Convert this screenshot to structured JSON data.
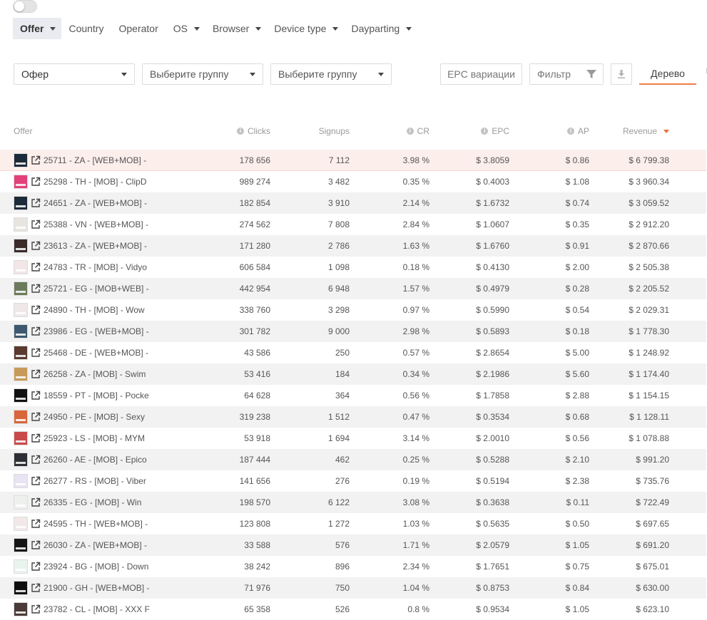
{
  "toolbar": {
    "tabs": [
      {
        "label": "Offer",
        "active": true,
        "caret": true
      },
      {
        "label": "Country",
        "caret": false
      },
      {
        "label": "Operator",
        "caret": false
      },
      {
        "label": "OS",
        "caret": true
      },
      {
        "label": "Browser",
        "caret": true
      },
      {
        "label": "Device type",
        "caret": true
      },
      {
        "label": "Dayparting",
        "caret": true
      }
    ]
  },
  "filters": {
    "group1": "Офер",
    "group2": "Выберите группу",
    "group3": "Выберите группу",
    "epc_variations": "EPC вариации",
    "filter": "Фильтр",
    "tree": "Дерево"
  },
  "table": {
    "headers": {
      "offer": "Offer",
      "clicks": "Clicks",
      "signups": "Signups",
      "cr": "CR",
      "epc": "EPC",
      "ap": "AP",
      "revenue": "Revenue"
    },
    "sort": {
      "column": "revenue",
      "direction": "desc",
      "color": "#f06a3a"
    },
    "highlight_color": "#fcefeb",
    "rows": [
      {
        "offer": "25711 - ZA - [WEB+MOB] -",
        "clicks": "178 656",
        "signups": "7 112",
        "cr": "3.98 %",
        "epc": "$ 3.8059",
        "ap": "$ 0.86",
        "revenue": "$ 6 799.38",
        "thumb": "#1d2a3a"
      },
      {
        "offer": "25298 - TH - [MOB] - ClipD",
        "clicks": "989 274",
        "signups": "3 482",
        "cr": "0.35 %",
        "epc": "$ 0.4003",
        "ap": "$ 1.08",
        "revenue": "$ 3 960.34",
        "thumb": "#e2417a"
      },
      {
        "offer": "24651 - ZA - [WEB+MOB] -",
        "clicks": "182 854",
        "signups": "3 910",
        "cr": "2.14 %",
        "epc": "$ 1.6732",
        "ap": "$ 0.74",
        "revenue": "$ 3 059.52",
        "thumb": "#1d2a3a"
      },
      {
        "offer": "25388 - VN - [WEB+MOB] -",
        "clicks": "274 562",
        "signups": "7 808",
        "cr": "2.84 %",
        "epc": "$ 1.0607",
        "ap": "$ 0.35",
        "revenue": "$ 2 912.20",
        "thumb": "#e8e4e0"
      },
      {
        "offer": "23613 - ZA - [WEB+MOB] -",
        "clicks": "171 280",
        "signups": "2 786",
        "cr": "1.63 %",
        "epc": "$ 1.6760",
        "ap": "$ 0.91",
        "revenue": "$ 2 870.66",
        "thumb": "#3a2a28"
      },
      {
        "offer": "24783 - TR - [MOB] - Vidyo",
        "clicks": "606 584",
        "signups": "1 098",
        "cr": "0.18 %",
        "epc": "$ 0.4130",
        "ap": "$ 2.00",
        "revenue": "$ 2 505.38",
        "thumb": "#f3e6e6"
      },
      {
        "offer": "25721 - EG - [MOB+WEB] -",
        "clicks": "442 954",
        "signups": "6 948",
        "cr": "1.57 %",
        "epc": "$ 0.4979",
        "ap": "$ 0.28",
        "revenue": "$ 2 205.52",
        "thumb": "#6b7a5a"
      },
      {
        "offer": "24890 - TH - [MOB] - Wow",
        "clicks": "338 760",
        "signups": "3 298",
        "cr": "0.97 %",
        "epc": "$ 0.5990",
        "ap": "$ 0.54",
        "revenue": "$ 2 029.31",
        "thumb": "#f0e8e8"
      },
      {
        "offer": "23986 - EG - [WEB+MOB] -",
        "clicks": "301 782",
        "signups": "9 000",
        "cr": "2.98 %",
        "epc": "$ 0.5893",
        "ap": "$ 0.18",
        "revenue": "$ 1 778.30",
        "thumb": "#3d5870"
      },
      {
        "offer": "25468 - DE - [WEB+MOB] -",
        "clicks": "43 586",
        "signups": "250",
        "cr": "0.57 %",
        "epc": "$ 2.8654",
        "ap": "$ 5.00",
        "revenue": "$ 1 248.92",
        "thumb": "#5a3b2e"
      },
      {
        "offer": "26258 - ZA - [MOB] - Swim",
        "clicks": "53 416",
        "signups": "184",
        "cr": "0.34 %",
        "epc": "$ 2.1986",
        "ap": "$ 5.60",
        "revenue": "$ 1 174.40",
        "thumb": "#c89a5a"
      },
      {
        "offer": "18559 - PT - [MOB] - Pocke",
        "clicks": "64 628",
        "signups": "364",
        "cr": "0.56 %",
        "epc": "$ 1.7858",
        "ap": "$ 2.88",
        "revenue": "$ 1 154.15",
        "thumb": "#111111"
      },
      {
        "offer": "24950 - PE - [MOB] - Sexy",
        "clicks": "319 238",
        "signups": "1 512",
        "cr": "0.47 %",
        "epc": "$ 0.3534",
        "ap": "$ 0.68",
        "revenue": "$ 1 128.11",
        "thumb": "#d9653a"
      },
      {
        "offer": "25923 - LS - [MOB] - MYM",
        "clicks": "53 918",
        "signups": "1 694",
        "cr": "3.14 %",
        "epc": "$ 2.0010",
        "ap": "$ 0.56",
        "revenue": "$ 1 078.88",
        "thumb": "#c84a4a"
      },
      {
        "offer": "26260 - AE - [MOB] - Epico",
        "clicks": "187 444",
        "signups": "462",
        "cr": "0.25 %",
        "epc": "$ 0.5288",
        "ap": "$ 2.10",
        "revenue": "$ 991.20",
        "thumb": "#2e2e36"
      },
      {
        "offer": "26277 - RS - [MOB] - Viber",
        "clicks": "141 656",
        "signups": "276",
        "cr": "0.19 %",
        "epc": "$ 0.5194",
        "ap": "$ 2.38",
        "revenue": "$ 735.76",
        "thumb": "#e8e4f2"
      },
      {
        "offer": "26335 - EG - [MOB] - Win",
        "clicks": "198 570",
        "signups": "6 122",
        "cr": "3.08 %",
        "epc": "$ 0.3638",
        "ap": "$ 0.11",
        "revenue": "$ 722.49",
        "thumb": "#eef0ee"
      },
      {
        "offer": "24595 - TH - [WEB+MOB] -",
        "clicks": "123 808",
        "signups": "1 272",
        "cr": "1.03 %",
        "epc": "$ 0.5635",
        "ap": "$ 0.50",
        "revenue": "$ 697.65",
        "thumb": "#f2e8e8"
      },
      {
        "offer": "26030 - ZA - [WEB+MOB] -",
        "clicks": "33 588",
        "signups": "576",
        "cr": "1.71 %",
        "epc": "$ 2.0579",
        "ap": "$ 1.05",
        "revenue": "$ 691.20",
        "thumb": "#151515"
      },
      {
        "offer": "23924 - BG - [MOB] - Down",
        "clicks": "38 242",
        "signups": "896",
        "cr": "2.34 %",
        "epc": "$ 1.7651",
        "ap": "$ 0.75",
        "revenue": "$ 675.01",
        "thumb": "#eaf4ee"
      },
      {
        "offer": "21900 - GH - [WEB+MOB] -",
        "clicks": "71 976",
        "signups": "750",
        "cr": "1.04 %",
        "epc": "$ 0.8753",
        "ap": "$ 0.84",
        "revenue": "$ 630.00",
        "thumb": "#0f0f0f"
      },
      {
        "offer": "23782 - CL - [MOB] - XXX F",
        "clicks": "65 358",
        "signups": "526",
        "cr": "0.8 %",
        "epc": "$ 0.9534",
        "ap": "$ 1.05",
        "revenue": "$ 623.10",
        "thumb": "#4a3a38"
      }
    ]
  }
}
